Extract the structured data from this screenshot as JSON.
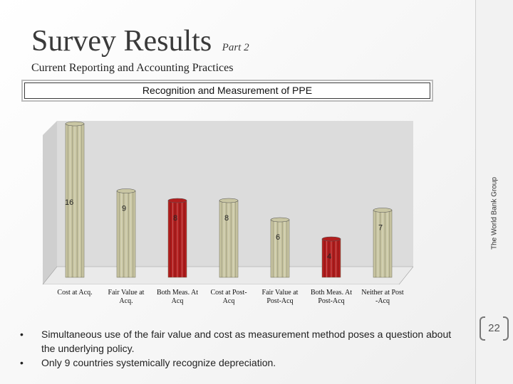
{
  "slide": {
    "title": "Survey Results",
    "title_part": "Part 2",
    "subtitle": "Current Reporting and Accounting Practices",
    "section_heading": "Recognition and Measurement of PPE",
    "vertical_label": "The World Bank Group",
    "page_number": "22"
  },
  "chart_data": {
    "type": "bar",
    "categories": [
      "Cost at Acq.",
      "Fair Value at Acq.",
      "Both Meas. At Acq",
      "Cost at Post-Acq",
      "Fair Value at Post-Acq",
      "Both Meas. At Post-Acq",
      "Neither at Post -Acq"
    ],
    "category_lines": [
      [
        "Cost at Acq."
      ],
      [
        "Fair Value at",
        "Acq."
      ],
      [
        "Both Meas. At",
        "Acq"
      ],
      [
        "Cost at Post-",
        "Acq"
      ],
      [
        "Fair Value at",
        "Post-Acq"
      ],
      [
        "Both Meas. At",
        "Post-Acq"
      ],
      [
        "Neither at Post",
        "-Acq"
      ]
    ],
    "values": [
      16,
      9,
      8,
      8,
      6,
      4,
      7
    ],
    "data_labels": [
      "16",
      "9",
      "8",
      "8",
      "6",
      "4",
      "7"
    ],
    "colors": [
      "#c9c6a3",
      "#c9c6a3",
      "#b21e1e",
      "#c9c6a3",
      "#c9c6a3",
      "#b21e1e",
      "#c9c6a3"
    ],
    "ylim": [
      0,
      16
    ],
    "grid": false,
    "legend": "none"
  },
  "bullets": [
    "Simultaneous use of the fair value and cost as measurement method poses a question about the underlying policy.",
    "Only 9 countries systemically recognize depreciation."
  ],
  "colors": {
    "title_text": "#3a3a3a",
    "chart_background": "#dcdcdc",
    "bar_default": "#c9c6a3",
    "bar_highlight": "#b21e1e"
  }
}
